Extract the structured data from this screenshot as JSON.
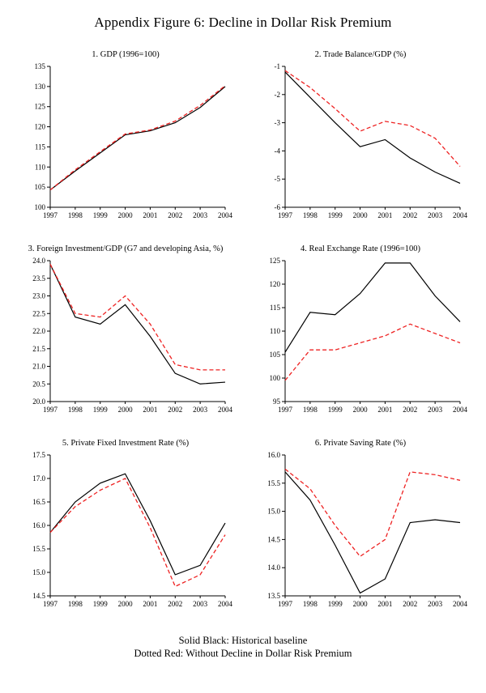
{
  "page_title": "Appendix Figure 6: Decline in Dollar Risk Premium",
  "legend": {
    "line1": "Solid Black: Historical baseline",
    "line2": "Dotted Red: Without Decline in Dollar Risk Premium"
  },
  "colors": {
    "baseline": "#000000",
    "counterfactual": "#ee2222"
  },
  "chart_data": [
    {
      "type": "line",
      "title": "1. GDP (1996=100)",
      "x": [
        1997,
        1998,
        1999,
        2000,
        2001,
        2002,
        2003,
        2004
      ],
      "xlabel": "",
      "ylabel": "",
      "ylim": [
        100,
        135
      ],
      "ytick_step": 5,
      "grid": false,
      "legend_position": "none",
      "series": [
        {
          "name": "Historical baseline",
          "color": "#000000",
          "style": "solid",
          "values": [
            104.3,
            109.0,
            113.5,
            118.0,
            119.0,
            121.0,
            124.8,
            130.0
          ]
        },
        {
          "name": "Without Decline in Dollar Risk Premium",
          "color": "#ee2222",
          "style": "dashed",
          "values": [
            104.3,
            109.3,
            113.8,
            118.2,
            119.2,
            121.4,
            125.3,
            130.2
          ]
        }
      ]
    },
    {
      "type": "line",
      "title": "2. Trade Balance/GDP (%)",
      "x": [
        1997,
        1998,
        1999,
        2000,
        2001,
        2002,
        2003,
        2004
      ],
      "xlabel": "",
      "ylabel": "",
      "ylim": [
        -6,
        -1
      ],
      "ytick_step": 1,
      "grid": false,
      "legend_position": "none",
      "series": [
        {
          "name": "Historical baseline",
          "color": "#000000",
          "style": "solid",
          "values": [
            -1.2,
            -2.1,
            -3.0,
            -3.85,
            -3.6,
            -4.25,
            -4.75,
            -5.15
          ]
        },
        {
          "name": "Without Decline in Dollar Risk Premium",
          "color": "#ee2222",
          "style": "dashed",
          "values": [
            -1.15,
            -1.75,
            -2.5,
            -3.3,
            -2.95,
            -3.1,
            -3.55,
            -4.55
          ]
        }
      ]
    },
    {
      "type": "line",
      "title": "3. Foreign Investment/GDP (G7 and developing Asia, %)",
      "x": [
        1997,
        1998,
        1999,
        2000,
        2001,
        2002,
        2003,
        2004
      ],
      "xlabel": "",
      "ylabel": "",
      "ylim": [
        20.0,
        24.0
      ],
      "ytick_step": 0.5,
      "grid": false,
      "legend_position": "none",
      "series": [
        {
          "name": "Historical baseline",
          "color": "#000000",
          "style": "solid",
          "values": [
            23.9,
            22.4,
            22.2,
            22.75,
            21.85,
            20.8,
            20.5,
            20.55
          ]
        },
        {
          "name": "Without Decline in Dollar Risk Premium",
          "color": "#ee2222",
          "style": "dashed",
          "values": [
            23.9,
            22.5,
            22.4,
            23.0,
            22.2,
            21.05,
            20.9,
            20.9
          ]
        }
      ]
    },
    {
      "type": "line",
      "title": "4. Real Exchange Rate (1996=100)",
      "x": [
        1997,
        1998,
        1999,
        2000,
        2001,
        2002,
        2003,
        2004
      ],
      "xlabel": "",
      "ylabel": "",
      "ylim": [
        95,
        125
      ],
      "ytick_step": 5,
      "grid": false,
      "legend_position": "none",
      "series": [
        {
          "name": "Historical baseline",
          "color": "#000000",
          "style": "solid",
          "values": [
            105.5,
            114.0,
            113.5,
            118.0,
            124.5,
            124.5,
            117.5,
            112.0
          ]
        },
        {
          "name": "Without Decline in Dollar Risk Premium",
          "color": "#ee2222",
          "style": "dashed",
          "values": [
            99.5,
            106.0,
            106.0,
            107.5,
            109.0,
            111.5,
            109.5,
            107.5
          ]
        }
      ]
    },
    {
      "type": "line",
      "title": "5. Private Fixed Investment Rate (%)",
      "x": [
        1997,
        1998,
        1999,
        2000,
        2001,
        2002,
        2003,
        2004
      ],
      "xlabel": "",
      "ylabel": "",
      "ylim": [
        14.5,
        17.5
      ],
      "ytick_step": 0.5,
      "grid": false,
      "legend_position": "none",
      "series": [
        {
          "name": "Historical baseline",
          "color": "#000000",
          "style": "solid",
          "values": [
            15.85,
            16.5,
            16.9,
            17.1,
            16.1,
            14.95,
            15.15,
            16.05
          ]
        },
        {
          "name": "Without Decline in Dollar Risk Premium",
          "color": "#ee2222",
          "style": "dashed",
          "values": [
            15.85,
            16.4,
            16.75,
            17.0,
            15.95,
            14.7,
            14.95,
            15.8
          ]
        }
      ]
    },
    {
      "type": "line",
      "title": "6. Private Saving Rate (%)",
      "x": [
        1997,
        1998,
        1999,
        2000,
        2001,
        2002,
        2003,
        2004
      ],
      "xlabel": "",
      "ylabel": "",
      "ylim": [
        13.5,
        16.0
      ],
      "ytick_step": 0.5,
      "grid": false,
      "legend_position": "none",
      "series": [
        {
          "name": "Historical baseline",
          "color": "#000000",
          "style": "solid",
          "values": [
            15.7,
            15.2,
            14.4,
            13.55,
            13.8,
            14.8,
            14.85,
            14.8
          ]
        },
        {
          "name": "Without Decline in Dollar Risk Premium",
          "color": "#ee2222",
          "style": "dashed",
          "values": [
            15.75,
            15.4,
            14.75,
            14.2,
            14.5,
            15.7,
            15.65,
            15.55
          ]
        }
      ]
    }
  ]
}
